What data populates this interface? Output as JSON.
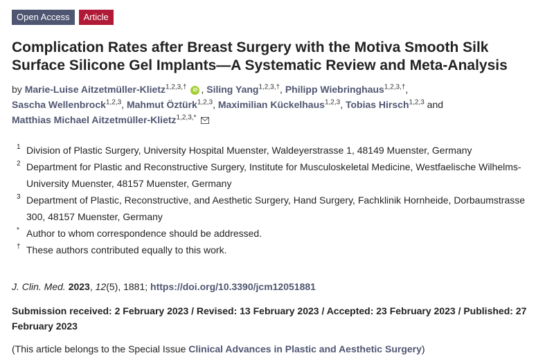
{
  "badges": {
    "open_access": "Open Access",
    "article": "Article"
  },
  "title": "Complication Rates after Breast Surgery with the Motiva Smooth Silk Surface Silicone Gel Implants—A Systematic Review and Meta-Analysis",
  "authors": {
    "by": "by",
    "and": "and",
    "list": [
      {
        "name": "Marie-Luise Aitzetmüller-Klietz",
        "sup": "1,2,3,†"
      },
      {
        "name": "Siling Yang",
        "sup": "1,2,3,†"
      },
      {
        "name": "Philipp Wiebringhaus",
        "sup": "1,2,3,†"
      },
      {
        "name": "Sascha Wellenbrock",
        "sup": "1,2,3"
      },
      {
        "name": "Mahmut Öztürk",
        "sup": "1,2,3"
      },
      {
        "name": "Maximilian Kückelhaus",
        "sup": "1,2,3"
      },
      {
        "name": "Tobias Hirsch",
        "sup": "1,2,3"
      },
      {
        "name": "Matthias Michael Aitzetmüller-Klietz",
        "sup": "1,2,3,*"
      }
    ],
    "orcid_label": "iD"
  },
  "affiliations": [
    {
      "marker": "1",
      "text": "Division of Plastic Surgery, University Hospital Muenster, Waldeyerstrasse 1, 48149 Muenster, Germany"
    },
    {
      "marker": "2",
      "text": "Department for Plastic and Reconstructive Surgery, Institute for Musculoskeletal Medicine, Westfaelische Wilhelms-University Muenster, 48157 Muenster, Germany"
    },
    {
      "marker": "3",
      "text": "Department of Plastic, Reconstructive, and Aesthetic Surgery, Hand Surgery, Fachklinik Hornheide, Dorbaumstrasse 300, 48157 Muenster, Germany"
    },
    {
      "marker": "*",
      "text": "Author to whom correspondence should be addressed."
    },
    {
      "marker": "†",
      "text": "These authors contributed equally to this work."
    }
  ],
  "citation": {
    "journal": "J. Clin. Med.",
    "year": "2023",
    "volume": "12",
    "issue": "(5), 1881;",
    "doi": "https://doi.org/10.3390/jcm12051881"
  },
  "dates": "Submission received: 2 February 2023 / Revised: 13 February 2023 / Accepted: 23 February 2023 / Published: 27 February 2023",
  "special_issue": {
    "prefix": "(This article belongs to the Special Issue ",
    "name": "Clinical Advances in Plastic and Aesthetic Surgery",
    "suffix": ")"
  }
}
